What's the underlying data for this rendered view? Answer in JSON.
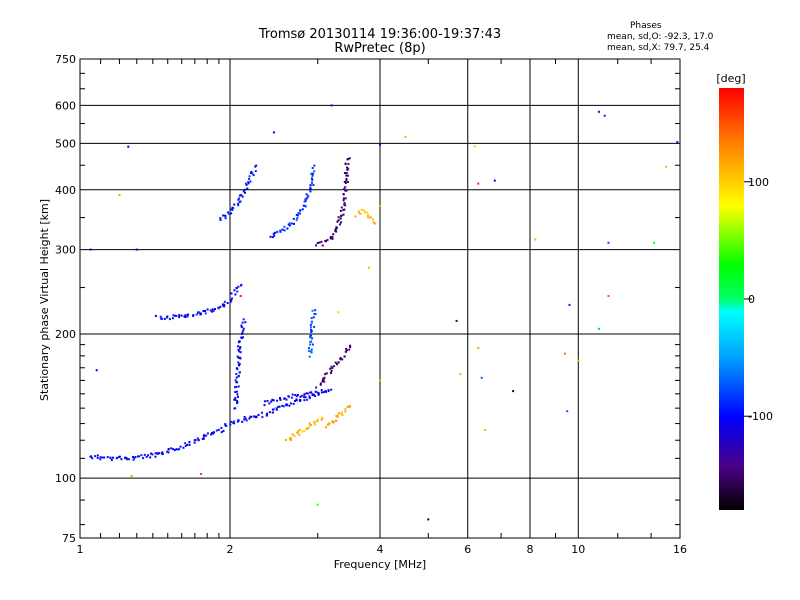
{
  "chart_data": {
    "type": "scatter",
    "title": "Tromsø 20130114 19:36:00-19:37:43",
    "subtitle": "RwPretec (8p)",
    "xlabel": "Frequency [MHz]",
    "ylabel": "Stationary phase Virtual Height [km]",
    "x_scale": "log",
    "y_scale": "log",
    "xlim": [
      1,
      16
    ],
    "ylim": [
      75,
      750
    ],
    "x_ticks": [
      1,
      2,
      4,
      6,
      8,
      10,
      16
    ],
    "y_ticks": [
      75,
      100,
      200,
      300,
      400,
      500,
      600,
      750
    ],
    "grid": true,
    "phases_header": "Phases",
    "phase_stats": [
      {
        "label": "mean, sd,O:",
        "values": "-92.3, 17.0"
      },
      {
        "label": "mean, sd,X:",
        "values": "79.7, 25.4"
      }
    ],
    "colorbar": {
      "label": "[deg]",
      "ticks": [
        100,
        0,
        -100
      ],
      "range": [
        -180,
        180
      ]
    },
    "traces": [
      {
        "freq": [
          1.05,
          1.15,
          1.25,
          1.35,
          1.45,
          1.55,
          1.65,
          1.75,
          1.85,
          1.95
        ],
        "height": [
          111,
          110,
          110,
          111,
          112,
          115,
          118,
          121,
          124,
          127
        ],
        "phase": -100
      },
      {
        "freq": [
          1.95,
          2.05,
          2.15,
          2.25,
          2.35,
          2.45,
          2.55,
          2.65,
          2.75,
          2.85,
          2.95,
          3.05
        ],
        "height": [
          129,
          131,
          133,
          134,
          136,
          138,
          141,
          143,
          145,
          147,
          149,
          151
        ],
        "phase": -100
      },
      {
        "freq": [
          2.35,
          2.5,
          2.65,
          2.8,
          2.95,
          3.1,
          3.2
        ],
        "height": [
          143,
          146,
          148,
          149,
          150,
          152,
          155
        ],
        "phase": -105
      },
      {
        "freq": [
          3.0,
          3.1,
          3.2,
          3.3,
          3.4,
          3.5
        ],
        "height": [
          155,
          162,
          168,
          175,
          182,
          190
        ],
        "phase": -150
      },
      {
        "freq": [
          1.45,
          1.55,
          1.65,
          1.75,
          1.85,
          1.95,
          2.0,
          2.05,
          2.1
        ],
        "height": [
          216,
          217,
          218,
          221,
          225,
          230,
          236,
          244,
          255
        ],
        "phase": -100
      },
      {
        "freq": [
          2.05,
          2.07,
          2.09,
          2.12,
          2.15
        ],
        "height": [
          140,
          160,
          185,
          205,
          215
        ],
        "phase": -100
      },
      {
        "freq": [
          1.9,
          1.95,
          2.0,
          2.05,
          2.1,
          2.15,
          2.2,
          2.25
        ],
        "height": [
          347,
          352,
          360,
          370,
          385,
          400,
          420,
          450
        ],
        "phase": -95
      },
      {
        "freq": [
          2.4,
          2.5,
          2.6,
          2.7,
          2.8,
          2.9,
          2.95
        ],
        "height": [
          320,
          325,
          333,
          345,
          365,
          400,
          450
        ],
        "phase": -85
      },
      {
        "freq": [
          3.0,
          3.1,
          3.2,
          3.3,
          3.4,
          3.45
        ],
        "height": [
          307,
          310,
          318,
          335,
          380,
          470
        ],
        "phase": -150
      },
      {
        "freq": [
          2.6,
          2.7,
          2.8,
          2.9,
          3.0,
          3.1
        ],
        "height": [
          120,
          123,
          126,
          129,
          131,
          133
        ],
        "phase": 110
      },
      {
        "freq": [
          3.1,
          3.2,
          3.3,
          3.4,
          3.5
        ],
        "height": [
          128,
          131,
          134,
          138,
          143
        ],
        "phase": 115
      },
      {
        "freq": [
          3.6,
          3.7,
          3.8,
          3.9
        ],
        "height": [
          355,
          360,
          352,
          340
        ],
        "phase": 110
      },
      {
        "freq": [
          2.9,
          2.92,
          2.95
        ],
        "height": [
          180,
          200,
          225
        ],
        "phase": -75
      }
    ],
    "scattered": [
      {
        "freq": 1.25,
        "height": 492,
        "phase": -100
      },
      {
        "freq": 1.05,
        "height": 300,
        "phase": -100
      },
      {
        "freq": 1.3,
        "height": 300,
        "phase": -100
      },
      {
        "freq": 1.2,
        "height": 390,
        "phase": 120
      },
      {
        "freq": 1.42,
        "height": 218,
        "phase": -100
      },
      {
        "freq": 1.08,
        "height": 168,
        "phase": -100
      },
      {
        "freq": 3.2,
        "height": 600,
        "phase": -100
      },
      {
        "freq": 2.45,
        "height": 527,
        "phase": -100
      },
      {
        "freq": 4.0,
        "height": 497,
        "phase": -110
      },
      {
        "freq": 4.5,
        "height": 516,
        "phase": 120
      },
      {
        "freq": 6.2,
        "height": 493,
        "phase": 110
      },
      {
        "freq": 6.3,
        "height": 412,
        "phase": 165
      },
      {
        "freq": 6.8,
        "height": 418,
        "phase": -100
      },
      {
        "freq": 11.0,
        "height": 582,
        "phase": -100
      },
      {
        "freq": 11.3,
        "height": 571,
        "phase": -90
      },
      {
        "freq": 15.0,
        "height": 447,
        "phase": 50
      },
      {
        "freq": 15.8,
        "height": 503,
        "phase": -110
      },
      {
        "freq": 8.2,
        "height": 315,
        "phase": 115
      },
      {
        "freq": 11.5,
        "height": 310,
        "phase": -80
      },
      {
        "freq": 14.2,
        "height": 310,
        "phase": 20
      },
      {
        "freq": 9.6,
        "height": 230,
        "phase": -90
      },
      {
        "freq": 11.0,
        "height": 205,
        "phase": -40
      },
      {
        "freq": 11.5,
        "height": 240,
        "phase": 150
      },
      {
        "freq": 5.7,
        "height": 213,
        "phase": -155
      },
      {
        "freq": 5.8,
        "height": 165,
        "phase": 110
      },
      {
        "freq": 6.3,
        "height": 187,
        "phase": 120
      },
      {
        "freq": 6.4,
        "height": 162,
        "phase": -70
      },
      {
        "freq": 6.5,
        "height": 126,
        "phase": 110
      },
      {
        "freq": 7.4,
        "height": 152,
        "phase": -175
      },
      {
        "freq": 9.4,
        "height": 182,
        "phase": 140
      },
      {
        "freq": 10.0,
        "height": 176,
        "phase": 110
      },
      {
        "freq": 9.5,
        "height": 138,
        "phase": -70
      },
      {
        "freq": 5.0,
        "height": 82,
        "phase": -175
      },
      {
        "freq": 3.0,
        "height": 88,
        "phase": 40
      },
      {
        "freq": 1.75,
        "height": 102,
        "phase": 160
      },
      {
        "freq": 1.27,
        "height": 101,
        "phase": 130
      },
      {
        "freq": 2.1,
        "height": 240,
        "phase": 170
      },
      {
        "freq": 3.3,
        "height": 222,
        "phase": 60
      },
      {
        "freq": 3.8,
        "height": 275,
        "phase": 110
      },
      {
        "freq": 4.0,
        "height": 370,
        "phase": 110
      },
      {
        "freq": 4.0,
        "height": 160,
        "phase": 115
      }
    ]
  }
}
